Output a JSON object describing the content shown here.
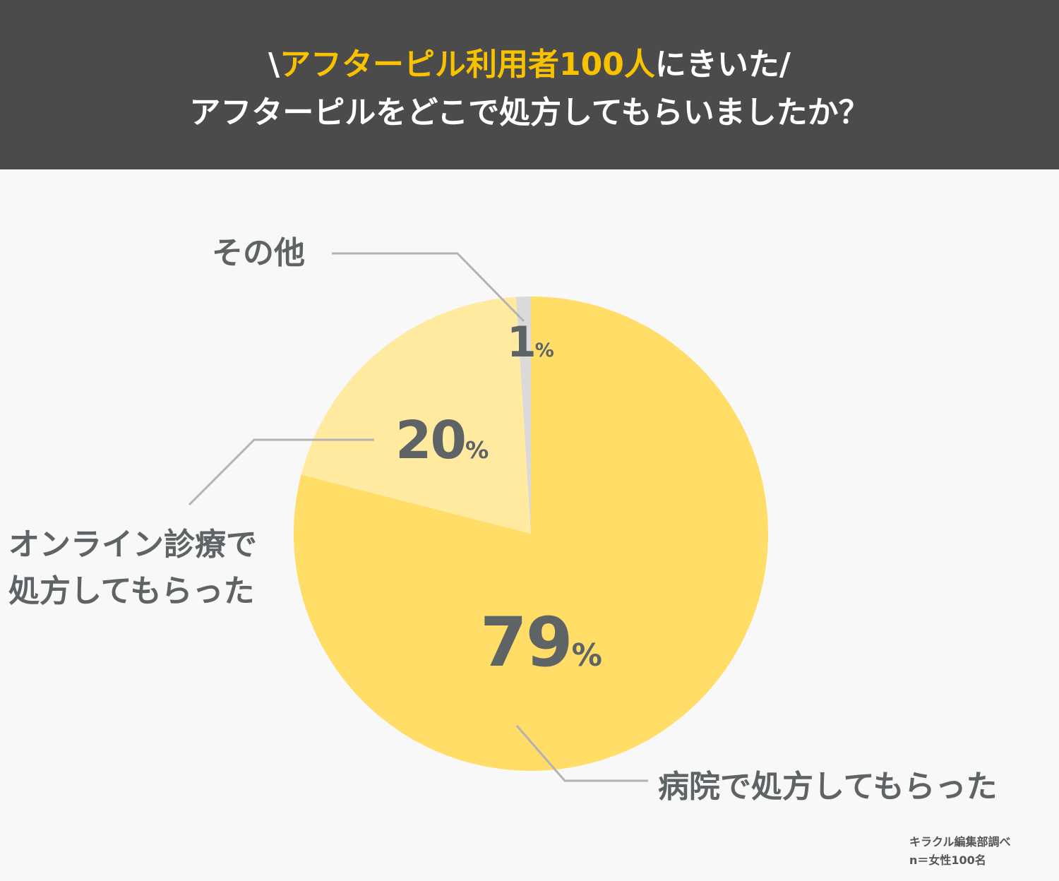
{
  "header": {
    "line1_open": "\\",
    "line1_highlight": "アフターピル利用者100人",
    "line1_rest": "にきいた/",
    "line2": "アフターピルをどこで処方してもらいましたか？"
  },
  "colors": {
    "header_bg": "#4b4b4b",
    "highlight": "#f8c200",
    "slice_hospital": "#ffdd66",
    "slice_online": "#ffeaa0",
    "slice_other": "#dadada",
    "leader": "#b3b3b3",
    "label_text": "#5e6466"
  },
  "chart_data": {
    "type": "pie",
    "start": "top",
    "direction": "clockwise",
    "unit": "%",
    "slices": [
      {
        "label": "病院で処方してもらった",
        "value": 79,
        "value_text": "79",
        "unit_text": "%",
        "color": "#ffdd66"
      },
      {
        "label": "オンライン診療で処方してもらった",
        "label_lines": [
          "オンライン診療で",
          "処方してもらった"
        ],
        "value": 20,
        "value_text": "20",
        "unit_text": "%",
        "color": "#ffeaa0"
      },
      {
        "label": "その他",
        "value": 1,
        "value_text": "1",
        "unit_text": "%",
        "color": "#dadada"
      }
    ]
  },
  "credit": {
    "line1": "キラクル編集部調べ",
    "line2": "n＝女性100名"
  }
}
